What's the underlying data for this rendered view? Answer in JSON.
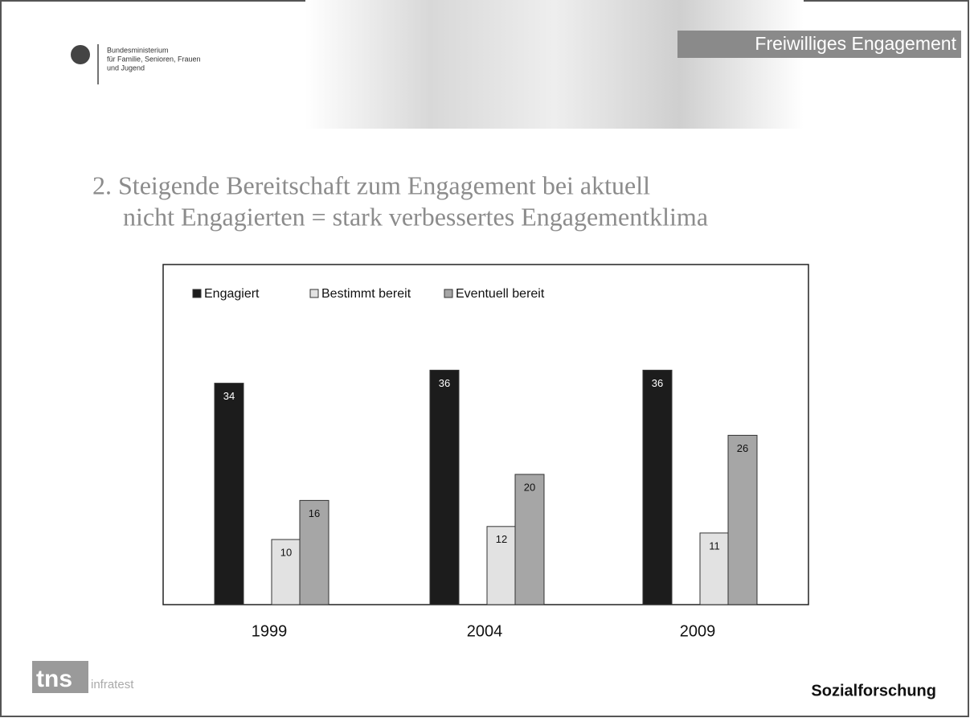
{
  "header": {
    "ministry": [
      "Bundesministerium",
      "für Familie, Senioren, Frauen",
      "und Jugend"
    ],
    "banner": "Freiwilliges Engagement"
  },
  "slide_title": [
    "2. Steigende Bereitschaft zum Engagement bei aktuell",
    "nicht Engagierten = stark verbessertes Engagementklima"
  ],
  "chart_data": {
    "type": "bar",
    "legend": "top-left",
    "categories": [
      "1999",
      "2004",
      "2009"
    ],
    "series": [
      {
        "name": "Engagiert",
        "color": "#1c1c1c",
        "values": [
          34,
          36,
          36
        ]
      },
      {
        "name": "Bestimmt bereit",
        "color": "#e2e2e2",
        "values": [
          10,
          12,
          11
        ]
      },
      {
        "name": "Eventuell bereit",
        "color": "#a6a6a6",
        "values": [
          16,
          20,
          26
        ]
      }
    ]
  },
  "footer": {
    "logo": "tns",
    "logo_sub": "infratest",
    "right": "Sozialforschung"
  }
}
